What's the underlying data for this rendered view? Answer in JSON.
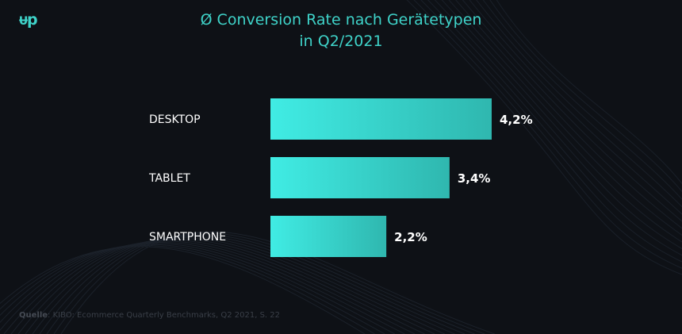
{
  "logo": {
    "text": "ᵾp"
  },
  "header": {
    "title_line1": "Ø Conversion Rate nach Gerätetypen",
    "title_line2": "in Q2/2021"
  },
  "footer": {
    "source_label": "Quelle",
    "source_text": ": KIBO: Ecommerce Quarterly Benchmarks, Q2 2021, S. 22"
  },
  "colors": {
    "accent": "#3fd3c9",
    "bar_light": "#40ece4",
    "bar_dark": "#2fb7af",
    "background": "#0e1116"
  },
  "chart_data": {
    "type": "bar",
    "orientation": "horizontal",
    "title": "Ø Conversion Rate nach Gerätetypen in Q2/2021",
    "categories": [
      "DESKTOP",
      "TABLET",
      "SMARTPHONE"
    ],
    "values": [
      4.2,
      3.4,
      2.2
    ],
    "value_labels": [
      "4,2%",
      "3,4%",
      "2,2%"
    ],
    "unit": "%",
    "xlim": [
      0,
      4.2
    ],
    "xlabel": "",
    "ylabel": "",
    "grid": false
  }
}
